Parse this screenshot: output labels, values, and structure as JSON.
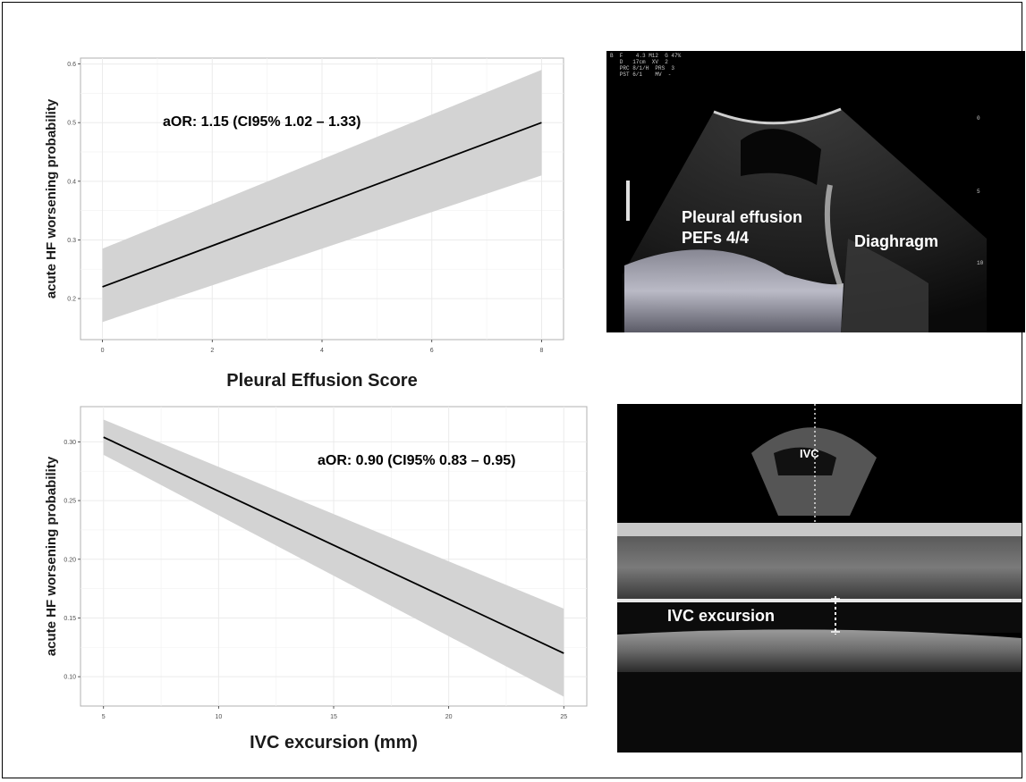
{
  "chart_data": [
    {
      "type": "line",
      "title": "",
      "annotation": "aOR: 1.15 (CI95% 1.02 – 1.33)",
      "xlabel": "Pleural Effusion Score",
      "ylabel": "acute HF worsening probability",
      "xlim": [
        -0.4,
        8.4
      ],
      "ylim": [
        0.13,
        0.61
      ],
      "xticks": [
        "0",
        "2",
        "4",
        "6",
        "8"
      ],
      "yticks": [
        "0.2",
        "0.3",
        "0.4",
        "0.5",
        "0.6"
      ],
      "grid": true,
      "series": [
        {
          "x": [
            0,
            8
          ],
          "y": [
            0.22,
            0.5
          ],
          "ci_lower": [
            0.16,
            0.41
          ],
          "ci_upper": [
            0.285,
            0.59
          ]
        }
      ]
    },
    {
      "type": "line",
      "title": "",
      "annotation": "aOR: 0.90 (CI95% 0.83 – 0.95)",
      "xlabel": "IVC excursion (mm)",
      "ylabel": "acute HF worsening probability",
      "xlim": [
        4,
        26
      ],
      "ylim": [
        0.075,
        0.33
      ],
      "xticks": [
        "5",
        "10",
        "15",
        "20",
        "25"
      ],
      "yticks": [
        "0.10",
        "0.15",
        "0.20",
        "0.25",
        "0.30"
      ],
      "grid": true,
      "series": [
        {
          "x": [
            5,
            25
          ],
          "y": [
            0.304,
            0.12
          ],
          "ci_lower": [
            0.289,
            0.083
          ],
          "ci_upper": [
            0.319,
            0.158
          ]
        }
      ]
    }
  ],
  "ultrasound_top": {
    "label_effusion_1": "Pleural effusion",
    "label_effusion_2": "PEFs 4/4",
    "label_diaphragm": "Diaghragm",
    "meta": "B  F    4.3 M12  G 47%\n   D   17cm  XV  2\n   PRC 8/1/H  PRS  3\n   PST 6/1    MV  -",
    "depth_ticks": [
      "0",
      "5",
      "10"
    ]
  },
  "ultrasound_bottom": {
    "label_ivc": "IVC",
    "label_excursion": "IVC excursion"
  },
  "colors": {
    "ci_band": "#d3d3d3",
    "fit_line": "#000000",
    "grid": "#ebebeb",
    "panel_border": "#b0b0b0"
  }
}
